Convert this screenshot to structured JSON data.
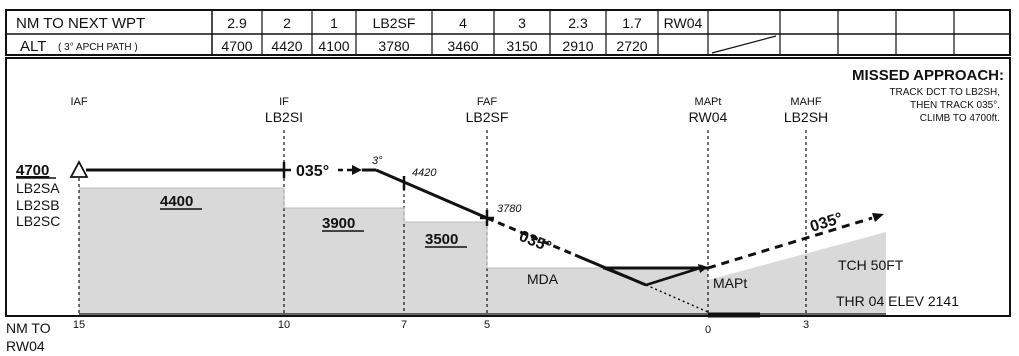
{
  "table": {
    "row1_label": "NM TO NEXT WPT",
    "row2_label": "ALT",
    "row2_sublabel": "( 3° APCH PATH )",
    "distances": [
      "2.9",
      "2",
      "1",
      "LB2SF",
      "4",
      "3",
      "2.3",
      "1.7",
      "RW04",
      "",
      "",
      "",
      ""
    ],
    "altitudes": [
      "4700",
      "4420",
      "4100",
      "3780",
      "3460",
      "3150",
      "2910",
      "2720",
      "",
      "",
      "",
      "",
      ""
    ]
  },
  "missed_approach": {
    "title": "MISSED APPROACH:",
    "lines": [
      "TRACK DCT TO LB2SH,",
      "THEN TRACK 035°.",
      "CLIMB TO 4700ft."
    ]
  },
  "fixes": {
    "iaf": {
      "role": "IAF",
      "name": ""
    },
    "if": {
      "role": "IF",
      "name": "LB2SI"
    },
    "faf": {
      "role": "FAF",
      "name": "LB2SF"
    },
    "mapt": {
      "role": "MAPt",
      "name": "RW04"
    },
    "mahf": {
      "role": "MAHF",
      "name": "LB2SH"
    }
  },
  "profile": {
    "initial_altitude": "4700",
    "initial_fixes": [
      "LB2SA",
      "LB2SB",
      "LB2SC"
    ],
    "course": "035°",
    "glide_angle": "3°",
    "alt_4420": "4420",
    "alt_3780": "3780",
    "segment_minimums": [
      "4400",
      "3900",
      "3500"
    ],
    "mda_label": "MDA",
    "mapt_label": "MAPt",
    "tch": "TCH 50FT",
    "threshold": "THR 04 ELEV 2141"
  },
  "axis": {
    "title_line1": "NM TO",
    "title_line2": "RW04",
    "ticks": [
      "15",
      "10",
      "7",
      "5",
      "0",
      "3"
    ]
  },
  "colors": {
    "terrain": "#d9d9d9",
    "ink": "#111111"
  }
}
